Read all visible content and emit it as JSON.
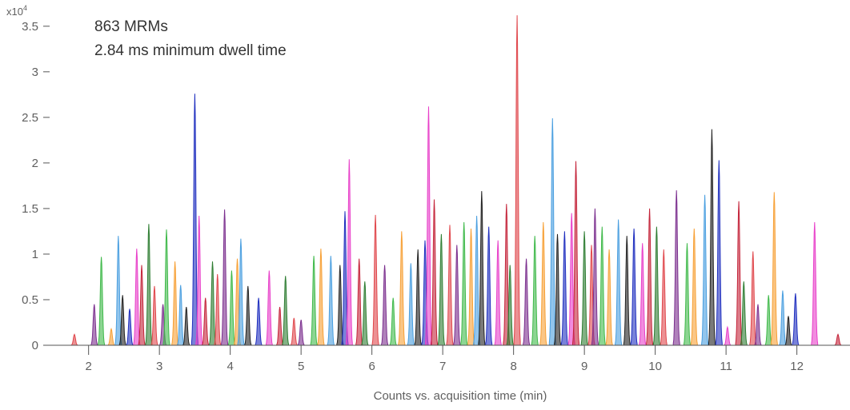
{
  "chart_data": {
    "type": "area",
    "title": "",
    "xlabel": "Counts vs. acquisition time (min)",
    "ylabel": "",
    "y_multiplier_label": "x10",
    "y_multiplier_exponent": "4",
    "xlim": [
      1.45,
      12.75
    ],
    "ylim": [
      0,
      3.7
    ],
    "x_ticks": [
      2,
      3,
      4,
      5,
      6,
      7,
      8,
      9,
      10,
      11,
      12
    ],
    "x_tick_labels": [
      "2",
      "3",
      "4",
      "5",
      "6",
      "7",
      "8",
      "9",
      "10",
      "11",
      "12"
    ],
    "y_ticks": [
      0,
      0.5,
      1,
      1.5,
      2,
      2.5,
      3,
      3.5
    ],
    "y_tick_labels": [
      "0",
      "0.5",
      "1",
      "1.5",
      "2",
      "2.5",
      "3",
      "3.5"
    ],
    "grid": false,
    "annotations": [
      "863 MRMs",
      "2.84 ms minimum dwell time"
    ],
    "series_colors": [
      "#e0474c",
      "#7b2f8e",
      "#3fb94a",
      "#f7a035",
      "#4a9fe0",
      "#222222",
      "#1f2fbf",
      "#e83fc9",
      "#c4243a",
      "#2e7d32"
    ],
    "peaks": [
      {
        "x": 1.8,
        "y": 0.12
      },
      {
        "x": 2.08,
        "y": 0.45
      },
      {
        "x": 2.18,
        "y": 0.97
      },
      {
        "x": 2.32,
        "y": 0.18
      },
      {
        "x": 2.42,
        "y": 1.2
      },
      {
        "x": 2.48,
        "y": 0.55
      },
      {
        "x": 2.58,
        "y": 0.4
      },
      {
        "x": 2.68,
        "y": 1.06
      },
      {
        "x": 2.75,
        "y": 0.88
      },
      {
        "x": 2.85,
        "y": 1.33
      },
      {
        "x": 2.93,
        "y": 0.65
      },
      {
        "x": 3.05,
        "y": 0.45
      },
      {
        "x": 3.1,
        "y": 1.27
      },
      {
        "x": 3.22,
        "y": 0.92
      },
      {
        "x": 3.3,
        "y": 0.66
      },
      {
        "x": 3.38,
        "y": 0.42
      },
      {
        "x": 3.5,
        "y": 2.76
      },
      {
        "x": 3.56,
        "y": 1.42
      },
      {
        "x": 3.65,
        "y": 0.52
      },
      {
        "x": 3.75,
        "y": 0.92
      },
      {
        "x": 3.82,
        "y": 0.78
      },
      {
        "x": 3.92,
        "y": 1.49
      },
      {
        "x": 4.02,
        "y": 0.82
      },
      {
        "x": 4.1,
        "y": 0.95
      },
      {
        "x": 4.15,
        "y": 1.17
      },
      {
        "x": 4.25,
        "y": 0.65
      },
      {
        "x": 4.4,
        "y": 0.52
      },
      {
        "x": 4.55,
        "y": 0.82
      },
      {
        "x": 4.7,
        "y": 0.42
      },
      {
        "x": 4.78,
        "y": 0.76
      },
      {
        "x": 4.9,
        "y": 0.3
      },
      {
        "x": 5.0,
        "y": 0.28
      },
      {
        "x": 5.18,
        "y": 0.98
      },
      {
        "x": 5.28,
        "y": 1.06
      },
      {
        "x": 5.42,
        "y": 0.98
      },
      {
        "x": 5.55,
        "y": 0.88
      },
      {
        "x": 5.62,
        "y": 1.47
      },
      {
        "x": 5.68,
        "y": 2.04
      },
      {
        "x": 5.82,
        "y": 0.95
      },
      {
        "x": 5.9,
        "y": 0.7
      },
      {
        "x": 6.05,
        "y": 1.43
      },
      {
        "x": 6.18,
        "y": 0.88
      },
      {
        "x": 6.3,
        "y": 0.52
      },
      {
        "x": 6.42,
        "y": 1.25
      },
      {
        "x": 6.55,
        "y": 0.9
      },
      {
        "x": 6.65,
        "y": 1.05
      },
      {
        "x": 6.75,
        "y": 1.15
      },
      {
        "x": 6.8,
        "y": 2.62
      },
      {
        "x": 6.88,
        "y": 1.6
      },
      {
        "x": 6.98,
        "y": 1.22
      },
      {
        "x": 7.1,
        "y": 1.32
      },
      {
        "x": 7.2,
        "y": 1.1
      },
      {
        "x": 7.3,
        "y": 1.35
      },
      {
        "x": 7.4,
        "y": 1.28
      },
      {
        "x": 7.48,
        "y": 1.42
      },
      {
        "x": 7.55,
        "y": 1.69
      },
      {
        "x": 7.65,
        "y": 1.3
      },
      {
        "x": 7.78,
        "y": 1.15
      },
      {
        "x": 7.9,
        "y": 1.55
      },
      {
        "x": 7.95,
        "y": 0.88
      },
      {
        "x": 8.05,
        "y": 3.62
      },
      {
        "x": 8.18,
        "y": 0.95
      },
      {
        "x": 8.3,
        "y": 1.2
      },
      {
        "x": 8.42,
        "y": 1.35
      },
      {
        "x": 8.55,
        "y": 2.49
      },
      {
        "x": 8.62,
        "y": 1.22
      },
      {
        "x": 8.72,
        "y": 1.25
      },
      {
        "x": 8.82,
        "y": 1.45
      },
      {
        "x": 8.88,
        "y": 2.02
      },
      {
        "x": 9.0,
        "y": 1.25
      },
      {
        "x": 9.1,
        "y": 1.1
      },
      {
        "x": 9.15,
        "y": 1.5
      },
      {
        "x": 9.25,
        "y": 1.3
      },
      {
        "x": 9.35,
        "y": 1.05
      },
      {
        "x": 9.48,
        "y": 1.38
      },
      {
        "x": 9.6,
        "y": 1.2
      },
      {
        "x": 9.7,
        "y": 1.28
      },
      {
        "x": 9.82,
        "y": 1.12
      },
      {
        "x": 9.92,
        "y": 1.5
      },
      {
        "x": 10.02,
        "y": 1.3
      },
      {
        "x": 10.12,
        "y": 1.05
      },
      {
        "x": 10.3,
        "y": 1.7
      },
      {
        "x": 10.45,
        "y": 1.12
      },
      {
        "x": 10.55,
        "y": 1.28
      },
      {
        "x": 10.7,
        "y": 1.65
      },
      {
        "x": 10.8,
        "y": 2.37
      },
      {
        "x": 10.9,
        "y": 2.03
      },
      {
        "x": 11.02,
        "y": 0.2
      },
      {
        "x": 11.18,
        "y": 1.58
      },
      {
        "x": 11.25,
        "y": 0.7
      },
      {
        "x": 11.38,
        "y": 1.03
      },
      {
        "x": 11.45,
        "y": 0.45
      },
      {
        "x": 11.6,
        "y": 0.55
      },
      {
        "x": 11.68,
        "y": 1.68
      },
      {
        "x": 11.8,
        "y": 0.6
      },
      {
        "x": 11.88,
        "y": 0.32
      },
      {
        "x": 11.98,
        "y": 0.57
      },
      {
        "x": 12.25,
        "y": 1.35
      },
      {
        "x": 12.58,
        "y": 0.12
      }
    ]
  }
}
